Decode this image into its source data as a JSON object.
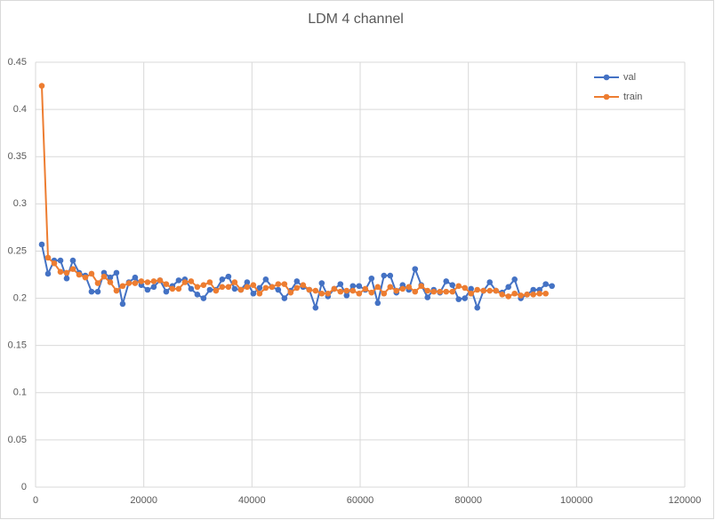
{
  "chart_data": {
    "type": "line",
    "title": "LDM 4 channel",
    "x": [
      1150,
      2300,
      3450,
      4600,
      5750,
      6900,
      8050,
      9200,
      10350,
      11500,
      12650,
      13800,
      14950,
      16100,
      17250,
      18400,
      19550,
      20700,
      21850,
      23000,
      24150,
      25300,
      26450,
      27600,
      28750,
      29900,
      31050,
      32200,
      33350,
      34500,
      35650,
      36800,
      37950,
      39100,
      40250,
      41400,
      42550,
      43700,
      44850,
      46000,
      47150,
      48300,
      49450,
      50600,
      51750,
      52900,
      54050,
      55200,
      56350,
      57500,
      58650,
      59800,
      60950,
      62100,
      63250,
      64400,
      65550,
      66700,
      67850,
      69000,
      70150,
      71300,
      72450,
      73600,
      74750,
      75900,
      77050,
      78200,
      79350,
      80500,
      81650,
      82800,
      83950,
      85100,
      86250,
      87400,
      88550,
      89700,
      90850,
      92000,
      93150,
      94300,
      95450
    ],
    "series": [
      {
        "name": "val",
        "color": "#4472c4",
        "values": [
          0.257,
          0.226,
          0.24,
          0.24,
          0.221,
          0.24,
          0.227,
          0.224,
          0.207,
          0.207,
          0.227,
          0.222,
          0.227,
          0.194,
          0.217,
          0.222,
          0.214,
          0.209,
          0.212,
          0.219,
          0.207,
          0.213,
          0.219,
          0.22,
          0.21,
          0.204,
          0.2,
          0.209,
          0.209,
          0.22,
          0.223,
          0.21,
          0.209,
          0.217,
          0.205,
          0.211,
          0.22,
          0.212,
          0.209,
          0.2,
          0.208,
          0.218,
          0.212,
          0.209,
          0.19,
          0.216,
          0.202,
          0.21,
          0.215,
          0.203,
          0.213,
          0.213,
          0.209,
          0.221,
          0.195,
          0.224,
          0.224,
          0.206,
          0.214,
          0.209,
          0.231,
          0.214,
          0.201,
          0.209,
          0.206,
          0.218,
          0.214,
          0.199,
          0.2,
          0.21,
          0.19,
          0.208,
          0.217,
          0.208,
          0.206,
          0.212,
          0.22,
          0.2,
          0.204,
          0.209,
          0.209,
          0.215,
          0.213
        ]
      },
      {
        "name": "train",
        "color": "#ed7d31",
        "values": [
          0.425,
          0.243,
          0.237,
          0.228,
          0.227,
          0.231,
          0.225,
          0.222,
          0.226,
          0.216,
          0.223,
          0.217,
          0.208,
          0.213,
          0.216,
          0.216,
          0.218,
          0.217,
          0.218,
          0.219,
          0.215,
          0.21,
          0.21,
          0.217,
          0.218,
          0.212,
          0.214,
          0.217,
          0.208,
          0.212,
          0.212,
          0.217,
          0.209,
          0.212,
          0.214,
          0.205,
          0.211,
          0.212,
          0.215,
          0.215,
          0.206,
          0.211,
          0.214,
          0.209,
          0.208,
          0.205,
          0.205,
          0.21,
          0.207,
          0.208,
          0.208,
          0.205,
          0.21,
          0.206,
          0.212,
          0.205,
          0.212,
          0.208,
          0.21,
          0.212,
          0.207,
          0.213,
          0.208,
          0.207,
          0.207,
          0.207,
          0.207,
          0.213,
          0.211,
          0.205,
          0.209,
          0.208,
          0.208,
          0.208,
          0.204,
          0.202,
          0.205,
          0.203,
          0.204,
          0.204,
          0.205,
          0.205,
          null
        ]
      }
    ],
    "xlim": [
      0,
      120000
    ],
    "xticks": [
      0,
      20000,
      40000,
      60000,
      80000,
      100000,
      120000
    ],
    "ylim": [
      0,
      0.45
    ],
    "yticks": [
      0,
      0.05,
      0.1,
      0.15,
      0.2,
      0.25,
      0.3,
      0.35,
      0.4,
      0.45
    ],
    "grid": true,
    "legend": "top-right"
  }
}
